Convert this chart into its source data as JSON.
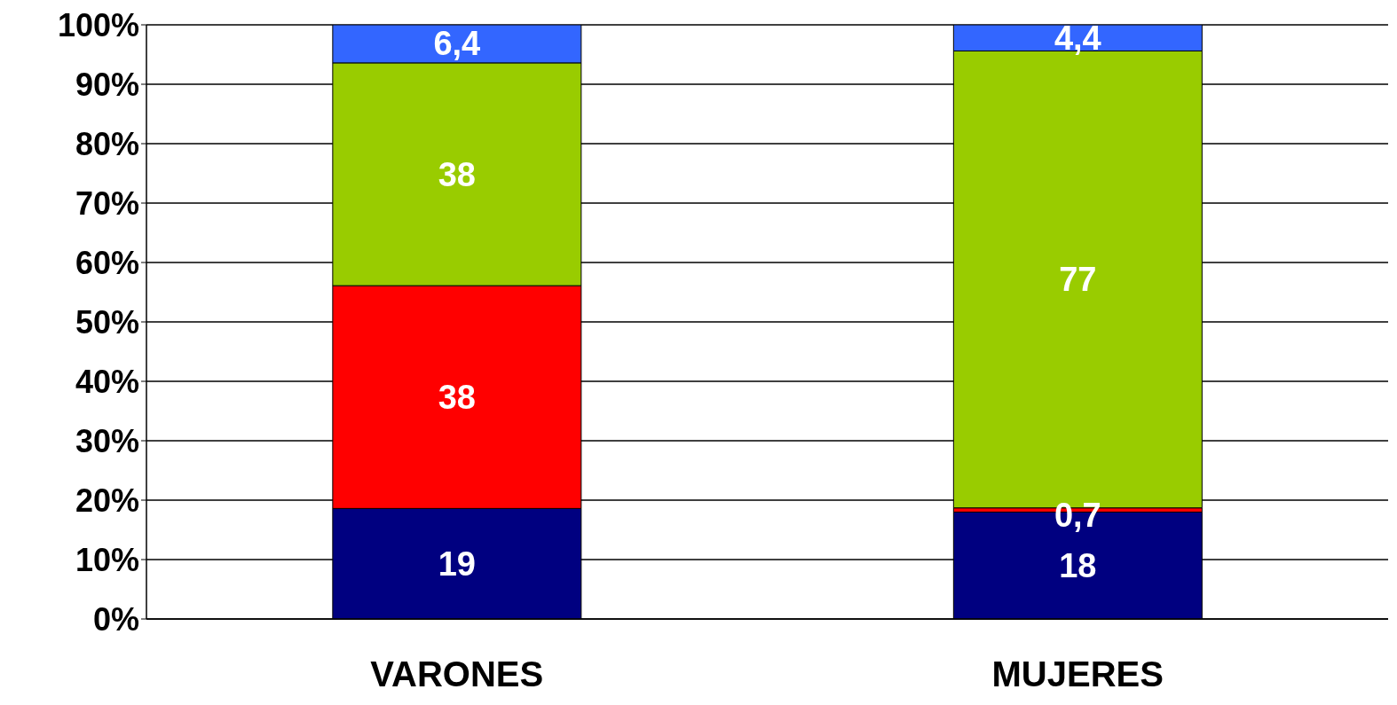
{
  "chart_data": {
    "type": "bar",
    "stacked": true,
    "categories": [
      "VARONES",
      "MUJERES"
    ],
    "series": [
      {
        "color": "#000080",
        "values": [
          18.6,
          18
        ],
        "value_labels": [
          "19",
          "18"
        ]
      },
      {
        "color": "#ff0000",
        "values": [
          37.5,
          0.7
        ],
        "value_labels": [
          "38",
          "0,7"
        ]
      },
      {
        "color": "#99cc00",
        "values": [
          37.5,
          76.9
        ],
        "value_labels": [
          "38",
          "77"
        ]
      },
      {
        "color": "#3366ff",
        "values": [
          6.4,
          4.4
        ],
        "value_labels": [
          "6,4",
          "4,4"
        ]
      }
    ],
    "ylim": [
      0,
      100
    ],
    "yticks": [
      {
        "value": 0,
        "label": "0%"
      },
      {
        "value": 10,
        "label": "10%"
      },
      {
        "value": 20,
        "label": "20%"
      },
      {
        "value": 30,
        "label": "30%"
      },
      {
        "value": 40,
        "label": "40%"
      },
      {
        "value": 50,
        "label": "50%"
      },
      {
        "value": 60,
        "label": "60%"
      },
      {
        "value": 70,
        "label": "70%"
      },
      {
        "value": 80,
        "label": "80%"
      },
      {
        "value": 90,
        "label": "90%"
      },
      {
        "value": 100,
        "label": "100%"
      }
    ],
    "grid": "y",
    "legend": false
  }
}
